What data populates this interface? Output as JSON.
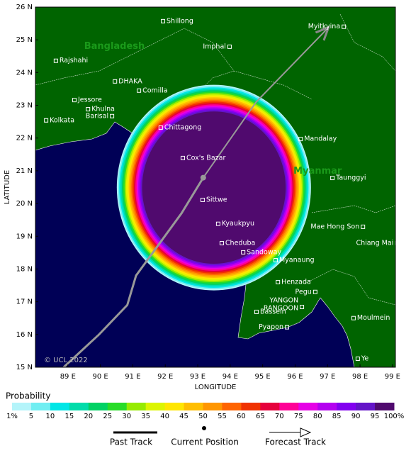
{
  "map": {
    "xlim": [
      88,
      99.09
    ],
    "ylim": [
      15,
      26
    ],
    "xticks": [
      {
        "value": 89,
        "label": "89 E"
      },
      {
        "value": 90,
        "label": "90 E"
      },
      {
        "value": 91,
        "label": "91 E"
      },
      {
        "value": 92,
        "label": "92 E"
      },
      {
        "value": 93,
        "label": "93 E"
      },
      {
        "value": 94,
        "label": "94 E"
      },
      {
        "value": 95,
        "label": "95 E"
      },
      {
        "value": 96,
        "label": "96 E"
      },
      {
        "value": 97,
        "label": "97 E"
      },
      {
        "value": 98,
        "label": "98 E"
      },
      {
        "value": 99,
        "label": "99 E"
      }
    ],
    "yticks": [
      {
        "value": 15,
        "label": "15 N"
      },
      {
        "value": 16,
        "label": "16 N"
      },
      {
        "value": 17,
        "label": "17 N"
      },
      {
        "value": 18,
        "label": "18 N"
      },
      {
        "value": 19,
        "label": "19 N"
      },
      {
        "value": 20,
        "label": "20 N"
      },
      {
        "value": 21,
        "label": "21 N"
      },
      {
        "value": 22,
        "label": "22 N"
      },
      {
        "value": 23,
        "label": "23 N"
      },
      {
        "value": 24,
        "label": "24 N"
      },
      {
        "value": 25,
        "label": "25 N"
      },
      {
        "value": 26,
        "label": "26 N"
      }
    ],
    "xlabel": "LONGITUDE",
    "ylabel": "LATITUDE",
    "credit": "© UCL 2022",
    "regions": [
      {
        "name": "Bangladesh",
        "lon": 89.5,
        "lat": 24.8
      },
      {
        "name": "Myanmar",
        "lon": 95.95,
        "lat": 20.99
      }
    ],
    "places": [
      {
        "name": "Shillong",
        "lon": 91.93,
        "lat": 25.57,
        "side": "right"
      },
      {
        "name": "Myitkyina",
        "lon": 97.5,
        "lat": 25.4,
        "side": "left"
      },
      {
        "name": "Imphal",
        "lon": 93.98,
        "lat": 24.79,
        "side": "left"
      },
      {
        "name": "Rajshahi",
        "lon": 88.63,
        "lat": 24.36,
        "side": "right"
      },
      {
        "name": "DHAKA",
        "lon": 90.45,
        "lat": 23.73,
        "side": "right"
      },
      {
        "name": "Comilla",
        "lon": 91.19,
        "lat": 23.45,
        "side": "right"
      },
      {
        "name": "Jessore",
        "lon": 89.2,
        "lat": 23.16,
        "side": "right"
      },
      {
        "name": "Khulna",
        "lon": 89.62,
        "lat": 22.88,
        "side": "right"
      },
      {
        "name": "Barisal",
        "lon": 90.36,
        "lat": 22.67,
        "side": "left"
      },
      {
        "name": "Kolkata",
        "lon": 88.33,
        "lat": 22.54,
        "side": "right"
      },
      {
        "name": "Chittagong",
        "lon": 91.86,
        "lat": 22.32,
        "side": "right"
      },
      {
        "name": "Mandalay",
        "lon": 96.17,
        "lat": 21.97,
        "side": "right"
      },
      {
        "name": "Cox's Bazar",
        "lon": 92.54,
        "lat": 21.39,
        "side": "right"
      },
      {
        "name": "Taunggyi",
        "lon": 97.15,
        "lat": 20.78,
        "side": "right"
      },
      {
        "name": "Sittwe",
        "lon": 93.15,
        "lat": 20.11,
        "side": "right"
      },
      {
        "name": "Kyaukpyu",
        "lon": 93.63,
        "lat": 19.38,
        "side": "right"
      },
      {
        "name": "Mae Hong Son",
        "lon": 98.09,
        "lat": 19.29,
        "side": "left"
      },
      {
        "name": "Chiang Mai",
        "lon": 99.14,
        "lat": 18.79,
        "side": "left"
      },
      {
        "name": "Cheduba",
        "lon": 93.74,
        "lat": 18.79,
        "side": "right"
      },
      {
        "name": "Sandoway",
        "lon": 94.4,
        "lat": 18.51,
        "side": "right"
      },
      {
        "name": "Myanaung",
        "lon": 95.4,
        "lat": 18.27,
        "side": "right"
      },
      {
        "name": "Henzada",
        "lon": 95.47,
        "lat": 17.6,
        "side": "right"
      },
      {
        "name": "Pegu",
        "lon": 96.62,
        "lat": 17.3,
        "side": "left"
      },
      {
        "name": "YANGON",
        "name2": "RANGOON",
        "lon": 96.21,
        "lat": 16.84,
        "side": "left"
      },
      {
        "name": "Bassein",
        "lon": 94.81,
        "lat": 16.69,
        "side": "right"
      },
      {
        "name": "Moulmein",
        "lon": 97.8,
        "lat": 16.5,
        "side": "right"
      },
      {
        "name": "Pyapon",
        "lon": 95.75,
        "lat": 16.22,
        "side": "left"
      },
      {
        "name": "Ye",
        "lon": 97.93,
        "lat": 15.26,
        "side": "right"
      }
    ],
    "past_track": {
      "lon": [
        88.87,
        89.96,
        90.83,
        91.1,
        91.8,
        92.5,
        93.17
      ],
      "lat": [
        15,
        16.0,
        16.9,
        17.8,
        18.75,
        19.7,
        20.79
      ]
    },
    "current_position": {
      "lon": 93.17,
      "lat": 20.79
    },
    "forecast_track": {
      "lon": [
        93.17,
        94.8,
        97.0
      ],
      "lat": [
        20.79,
        23.1,
        25.35
      ]
    }
  },
  "probability": {
    "title": "Probability",
    "levels": [
      {
        "value": 1,
        "label": "1%"
      },
      5,
      10,
      15,
      20,
      25,
      30,
      35,
      40,
      45,
      50,
      55,
      60,
      65,
      70,
      75,
      80,
      85,
      90,
      95,
      {
        "value": 100,
        "label": "100%"
      }
    ],
    "colors": [
      "#b4f4fa",
      "#70eef2",
      "#00e6e6",
      "#00dcaa",
      "#00d264",
      "#28dc28",
      "#96eb00",
      "#dcf500",
      "#ffe600",
      "#ffbe00",
      "#ff9600",
      "#ff6400",
      "#f03200",
      "#e6003c",
      "#ff0096",
      "#e600e6",
      "#b400f0",
      "#8200f0",
      "#6414c8",
      "#500a6e"
    ]
  },
  "legend": {
    "past": "Past Track",
    "current": "Current Position",
    "forecast": "Forecast Track"
  }
}
